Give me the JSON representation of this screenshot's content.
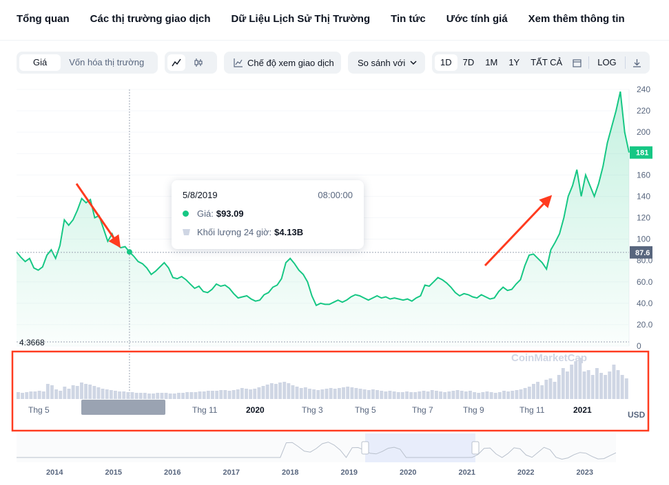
{
  "nav": {
    "items": [
      {
        "label": "Tổng quan",
        "active": true
      },
      {
        "label": "Các thị trường giao dịch",
        "active": false
      },
      {
        "label": "Dữ Liệu Lịch Sử Thị Trường",
        "active": false
      },
      {
        "label": "Tin tức",
        "active": false
      },
      {
        "label": "Ước tính giá",
        "active": false
      },
      {
        "label": "Xem thêm thông tin",
        "active": false
      }
    ]
  },
  "toolbar": {
    "price_tab": "Giá",
    "mcap_tab": "Vốn hóa thị trường",
    "line_icon": "line-chart-icon",
    "candle_icon": "candlestick-icon",
    "trading_view": "Chế độ xem giao dịch",
    "compare": "So sánh với",
    "ranges": [
      "1D",
      "7D",
      "1M",
      "1Y",
      "TẤT CẢ"
    ],
    "active_range": "1D",
    "calendar_icon": "calendar-icon",
    "log": "LOG",
    "download_icon": "download-icon"
  },
  "tooltip": {
    "date": "5/8/2019",
    "time": "08:00:00",
    "price_label": "Giá:",
    "price_value": "$93.09",
    "volume_label": "Khối lượng 24 giờ:",
    "volume_value": "$4.13B"
  },
  "colors": {
    "line": "#16c784",
    "accent": "#3861fb",
    "volume": "#cfd6e4",
    "annotation": "#ff3b1f"
  },
  "chart_data": {
    "type": "line",
    "y_ticks": [
      "0",
      "20.0",
      "40.0",
      "60.0",
      "80.0",
      "100",
      "120",
      "140",
      "160",
      "180",
      "200",
      "220",
      "240"
    ],
    "ylim": [
      0,
      240
    ],
    "x_labels": [
      "Thg 5",
      "Thg 11",
      "2020",
      "Thg 3",
      "Thg 5",
      "Thg 7",
      "Thg 9",
      "Thg 11",
      "2021"
    ],
    "min_label": "4.3668",
    "current_price": "181",
    "hover_price": "87.6",
    "currency": "USD",
    "watermark": "CoinMarketCap",
    "series": [
      {
        "values": [
          88,
          83,
          79,
          82,
          73,
          71,
          74,
          85,
          90,
          82,
          94,
          118,
          113,
          118,
          127,
          138,
          134,
          137,
          120,
          122,
          110,
          98,
          105,
          95,
          92,
          93,
          88,
          84,
          79,
          77,
          73,
          67,
          70,
          74,
          78,
          73,
          64,
          63,
          65,
          62,
          58,
          54,
          56,
          51,
          50,
          53,
          58,
          56,
          57,
          54,
          49,
          45,
          46,
          47,
          44,
          42,
          43,
          48,
          50,
          55,
          57,
          63,
          78,
          82,
          77,
          71,
          67,
          60,
          47,
          38,
          40,
          39,
          39,
          41,
          43,
          41,
          43,
          46,
          48,
          47,
          45,
          43,
          45,
          47,
          45,
          46,
          44,
          45,
          44,
          43,
          44,
          42,
          45,
          47,
          57,
          56,
          60,
          64,
          62,
          59,
          55,
          50,
          47,
          49,
          48,
          46,
          45,
          48,
          46,
          44,
          45,
          51,
          55,
          52,
          53,
          58,
          62,
          75,
          85,
          86,
          82,
          78,
          72,
          90,
          97,
          105,
          120,
          140,
          150,
          165,
          140,
          160,
          150,
          140,
          152,
          168,
          190,
          205,
          220,
          238,
          200,
          181
        ]
      }
    ],
    "volume_values": [
      10,
      9,
      10,
      11,
      11,
      12,
      11,
      22,
      20,
      14,
      12,
      18,
      15,
      20,
      19,
      24,
      22,
      21,
      19,
      17,
      15,
      14,
      13,
      12,
      11,
      11,
      10,
      10,
      9,
      9,
      9,
      8,
      8,
      9,
      9,
      9,
      8,
      8,
      9,
      9,
      10,
      10,
      10,
      11,
      11,
      12,
      12,
      12,
      13,
      13,
      12,
      13,
      14,
      16,
      15,
      14,
      15,
      17,
      19,
      21,
      23,
      22,
      24,
      25,
      23,
      20,
      18,
      16,
      17,
      15,
      14,
      13,
      14,
      15,
      16,
      15,
      16,
      17,
      18,
      17,
      16,
      15,
      14,
      13,
      14,
      13,
      12,
      11,
      12,
      11,
      10,
      10,
      11,
      10,
      10,
      11,
      12,
      11,
      13,
      12,
      11,
      10,
      11,
      12,
      13,
      12,
      11,
      12,
      10,
      9,
      10,
      11,
      10,
      9,
      10,
      12,
      11,
      12,
      13,
      14,
      16,
      18,
      22,
      25,
      20,
      28,
      30,
      25,
      35,
      45,
      40,
      50,
      55,
      60,
      40,
      42,
      35,
      45,
      38,
      35,
      40,
      50,
      42,
      35,
      30
    ]
  }
}
